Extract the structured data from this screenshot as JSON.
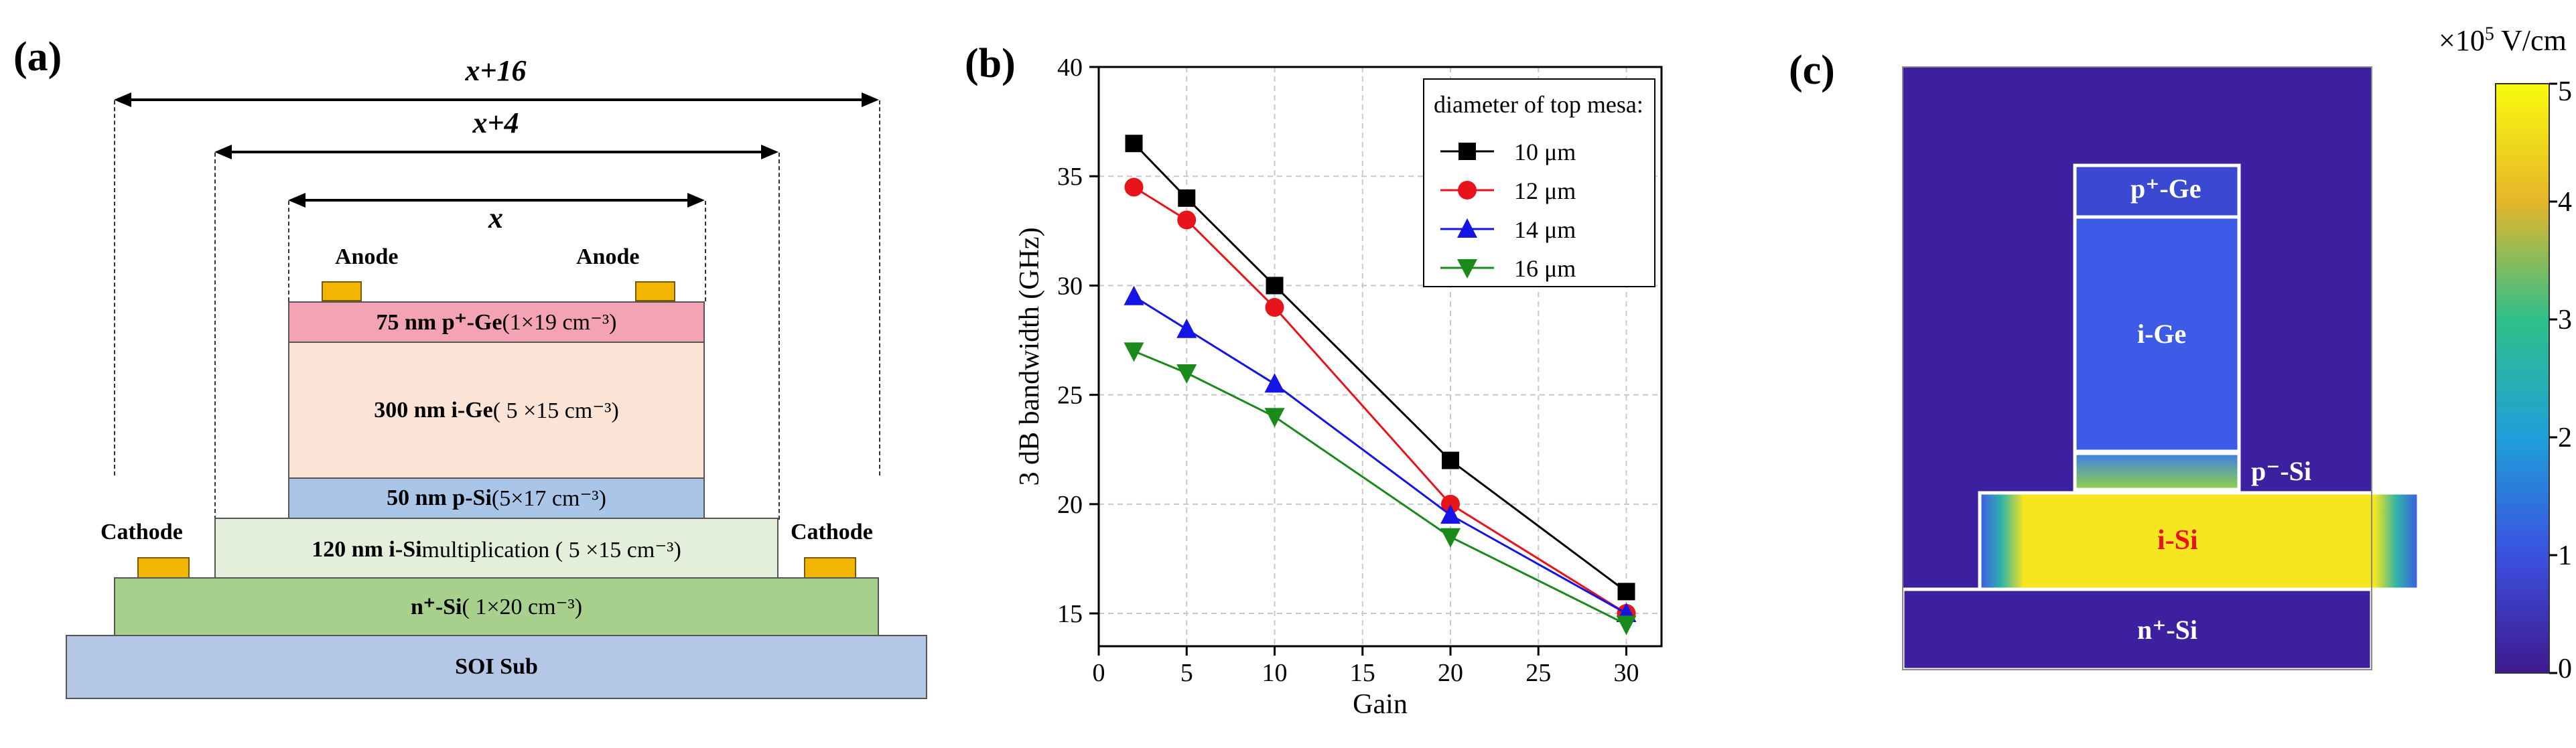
{
  "panel_a": {
    "label": "(a)",
    "dim_outer": "x+16",
    "dim_middle": "x+4",
    "dim_inner": "x",
    "anode_left": "Anode",
    "anode_right": "Anode",
    "cathode_left": "Cathode",
    "cathode_right": "Cathode",
    "layers": {
      "pge_bold": "75 nm p⁺-Ge",
      "pge_rest": " (1×19 cm⁻³)",
      "ige_bold": "300 nm i-Ge",
      "ige_rest": " ( 5 ×15 cm⁻³)",
      "psi_bold": "50 nm p-Si",
      "psi_rest": " (5×17 cm⁻³)",
      "isi_bold": "120 nm i-Si",
      "isi_rest": " multiplication ( 5 ×15 cm⁻³)",
      "nsi_bold": "n⁺-Si",
      "nsi_rest": " ( 1×20 cm⁻³)",
      "sub": "SOI Sub"
    },
    "colors": {
      "pge": "#f4a3b5",
      "ige": "#fbe3d6",
      "psi": "#a9c6e8",
      "isi": "#e3efda",
      "nsi": "#a8d08d",
      "sub": "#b4c7e7",
      "contact": "#f2b600"
    }
  },
  "panel_b": {
    "label": "(b)",
    "chart_data": {
      "type": "line",
      "xlabel": "Gain",
      "ylabel": "3 dB bandwidth (GHz)",
      "xlim": [
        0,
        32
      ],
      "ylim": [
        13.5,
        40
      ],
      "xticks": [
        0,
        5,
        10,
        15,
        20,
        25,
        30
      ],
      "yticks": [
        15,
        20,
        25,
        30,
        35,
        40
      ],
      "grid": true,
      "legend_title": "diameter of top mesa:",
      "legend_position": "top-right",
      "x": [
        2,
        5,
        10,
        20,
        30
      ],
      "series": [
        {
          "name": "10 μm",
          "values": [
            36.5,
            34,
            30,
            22,
            16
          ],
          "color": "#000000",
          "marker": "square"
        },
        {
          "name": "12 μm",
          "values": [
            34.5,
            33,
            29,
            20,
            15
          ],
          "color": "#e8141c",
          "marker": "circle"
        },
        {
          "name": "14 μm",
          "values": [
            29.5,
            28,
            25.5,
            19.5,
            15
          ],
          "color": "#1414e6",
          "marker": "triangle-up"
        },
        {
          "name": "16 μm",
          "values": [
            27,
            26,
            24,
            18.5,
            14.5
          ],
          "color": "#1a8a1a",
          "marker": "triangle-down"
        }
      ]
    }
  },
  "panel_c": {
    "label": "(c)",
    "unit_prefix": "×10",
    "unit_exp": "5",
    "unit_suffix": " V/cm",
    "region_pge": "p⁺-Ge",
    "region_ige": "i-Ge",
    "region_psi": "p⁻-Si",
    "region_isi": "i-Si",
    "region_nsi": "n⁺-Si",
    "colorbar_ticks": [
      "0",
      "1",
      "2",
      "3",
      "4",
      "5"
    ],
    "colors": {
      "background": "#3c20a0",
      "ige": "#3d5be6",
      "isi": "#f6e61f",
      "isi_label": "#e8141c"
    }
  }
}
